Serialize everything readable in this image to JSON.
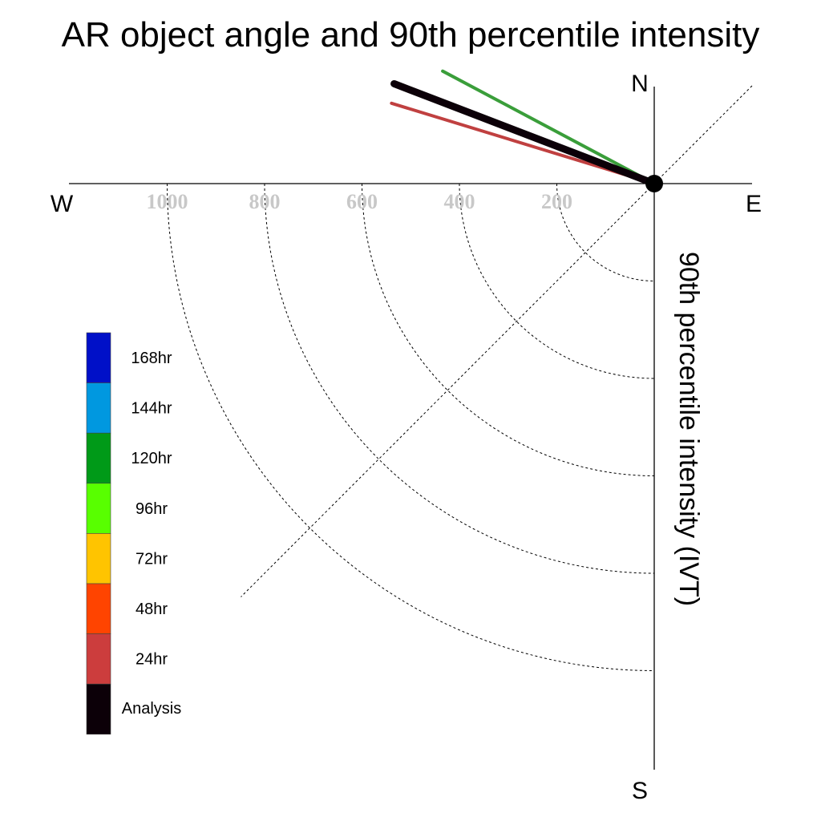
{
  "chart_data": {
    "type": "polar-vector",
    "title": "AR object angle and 90th percentile intensity",
    "ylabel": "90th percentile intensity (IVT)",
    "compass": {
      "north": "N",
      "south": "S",
      "east": "E",
      "west": "W"
    },
    "radial_ticks": [
      "1000",
      "800",
      "600",
      "400",
      "200"
    ],
    "radial_tick_values": [
      1000,
      800,
      600,
      400,
      200
    ],
    "radial_max": 1200,
    "legend": [
      {
        "label": "168hr",
        "color": "#0010c8"
      },
      {
        "label": "144hr",
        "color": "#0098e0"
      },
      {
        "label": "120hr",
        "color": "#009a18"
      },
      {
        "label": "96hr",
        "color": "#58ff00"
      },
      {
        "label": "72hr",
        "color": "#ffc400"
      },
      {
        "label": "48hr",
        "color": "#ff4400"
      },
      {
        "label": "24hr",
        "color": "#cc3d3d"
      },
      {
        "label": "Analysis",
        "color": "#0c0008"
      }
    ],
    "series": [
      {
        "name": "120hr",
        "color": "#3a9e3a",
        "magnitude": 492,
        "direction_deg": 298
      },
      {
        "name": "24hr",
        "color": "#c04040",
        "magnitude": 564,
        "direction_deg": 287
      },
      {
        "name": "Analysis",
        "color": "#0c0008",
        "magnitude": 572,
        "direction_deg": 291
      }
    ]
  }
}
